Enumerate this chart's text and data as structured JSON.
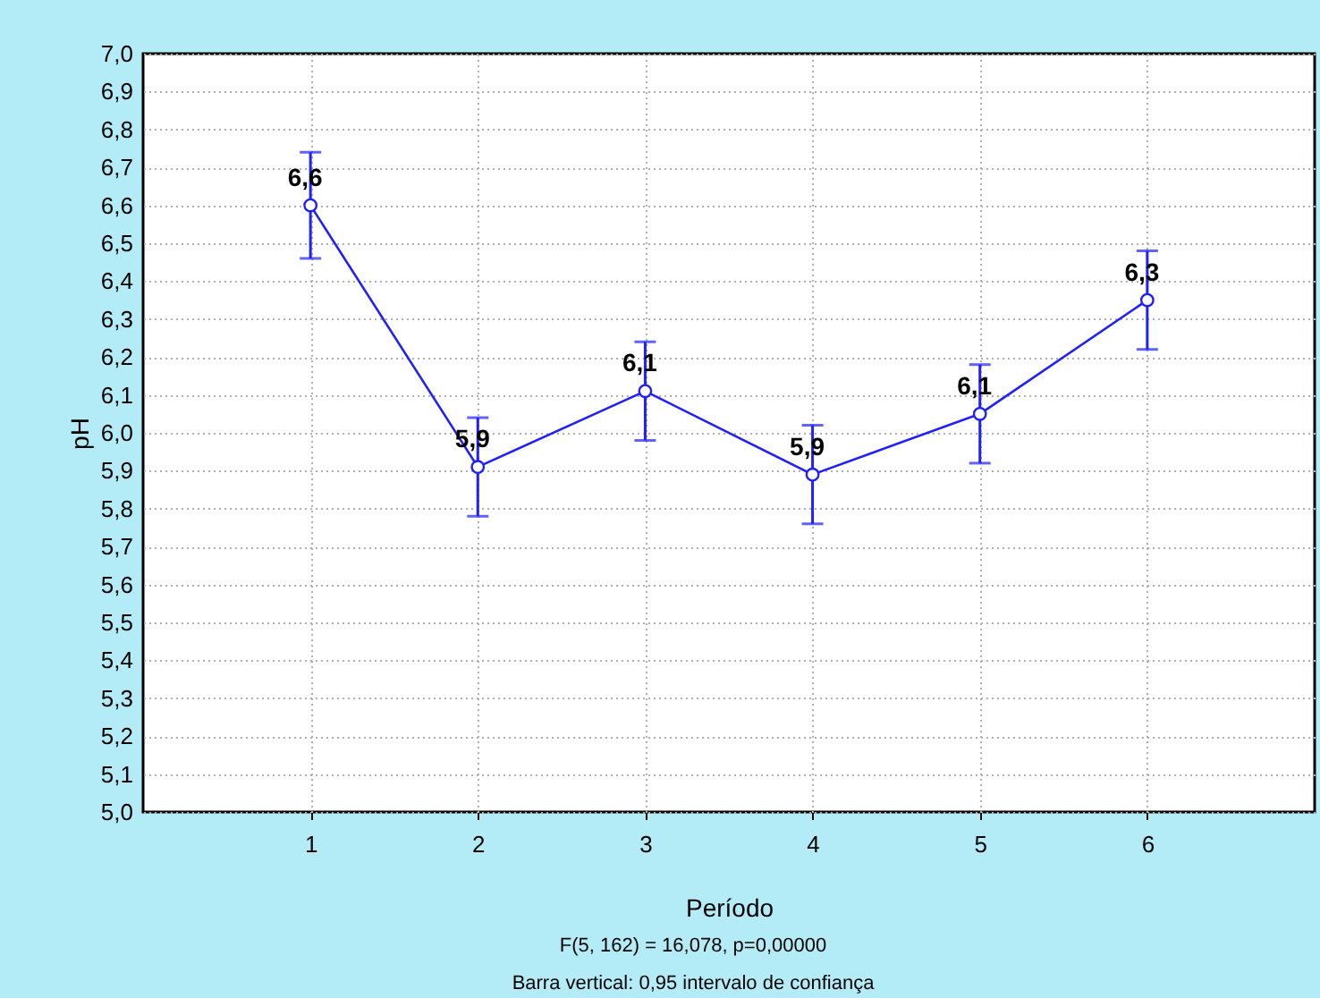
{
  "chart_data": {
    "type": "line",
    "xlabel": "Período",
    "ylabel": "pH",
    "x": [
      1,
      2,
      3,
      4,
      5,
      6
    ],
    "series": [
      {
        "color": "#1f1fff",
        "values": [
          6.6,
          5.91,
          6.11,
          5.89,
          6.05,
          6.35
        ],
        "errors": [
          0.14,
          0.13,
          0.13,
          0.13,
          0.13,
          0.13
        ],
        "value_labels": [
          "6,6",
          "5,9",
          "6,1",
          "5,9",
          "6,1",
          "6,3"
        ]
      }
    ],
    "xlim": [
      0,
      7
    ],
    "xticks": [
      1,
      2,
      3,
      4,
      5,
      6
    ],
    "ylim": [
      5.0,
      7.0
    ],
    "yticks": [
      {
        "value": 5.0,
        "label": "5,0"
      },
      {
        "value": 5.1,
        "label": "5,1"
      },
      {
        "value": 5.2,
        "label": "5,2"
      },
      {
        "value": 5.3,
        "label": "5,3"
      },
      {
        "value": 5.4,
        "label": "5,4"
      },
      {
        "value": 5.5,
        "label": "5,5"
      },
      {
        "value": 5.6,
        "label": "5,6"
      },
      {
        "value": 5.7,
        "label": "5,7"
      },
      {
        "value": 5.8,
        "label": "5,8"
      },
      {
        "value": 5.9,
        "label": "5,9"
      },
      {
        "value": 6.0,
        "label": "6,0"
      },
      {
        "value": 6.1,
        "label": "6,1"
      },
      {
        "value": 6.2,
        "label": "6,2"
      },
      {
        "value": 6.3,
        "label": "6,3"
      },
      {
        "value": 6.4,
        "label": "6,4"
      },
      {
        "value": 6.5,
        "label": "6,5"
      },
      {
        "value": 6.6,
        "label": "6,6"
      },
      {
        "value": 6.7,
        "label": "6,7"
      },
      {
        "value": 6.8,
        "label": "6,8"
      },
      {
        "value": 6.9,
        "label": "6,9"
      },
      {
        "value": 7.0,
        "label": "7,0"
      }
    ],
    "grid": true,
    "marker": "circle",
    "line_style": "solid",
    "annotations": [
      "F(5, 162) = 16,078,  p=0,00000",
      "Barra vertical: 0,95 intervalo de confiança"
    ]
  }
}
